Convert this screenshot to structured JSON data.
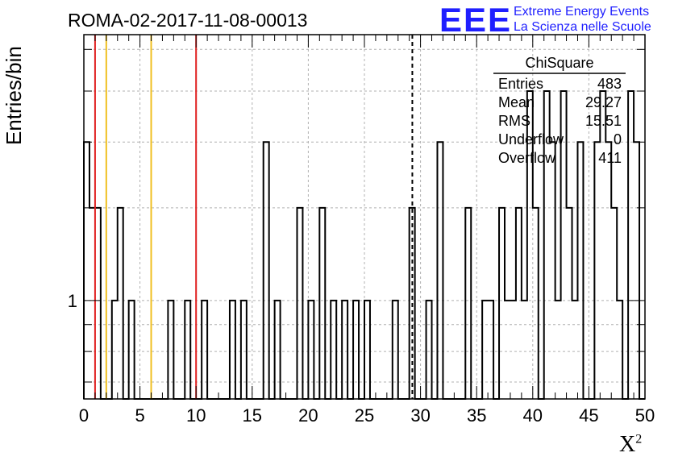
{
  "title": "ROMA-02-2017-11-08-00013",
  "logo": {
    "mark": "EEE",
    "line1": "Extreme Energy Events",
    "line2": "La Scienza nelle Scuole"
  },
  "chart_data": {
    "type": "bar",
    "title": "ROMA-02-2017-11-08-00013",
    "xlabel": "X",
    "xlabel_sup": "2",
    "ylabel": "Entries/bin",
    "xlim": [
      0,
      50
    ],
    "ylim": [
      0.65,
      3.2
    ],
    "y_scale": "log",
    "bin_width": 0.5,
    "grid": true,
    "x_tick_labels": [
      "0",
      "5",
      "10",
      "15",
      "20",
      "25",
      "30",
      "35",
      "40",
      "45",
      "50"
    ],
    "y_tick_labels": [
      "1"
    ],
    "bins": [
      {
        "x": 0.0,
        "y": 2
      },
      {
        "x": 0.5,
        "y": 1.5
      },
      {
        "x": 1.0,
        "y": 1.5
      },
      {
        "x": 2.5,
        "y": 1
      },
      {
        "x": 3.0,
        "y": 1.5
      },
      {
        "x": 4.0,
        "y": 1
      },
      {
        "x": 7.5,
        "y": 1
      },
      {
        "x": 9.0,
        "y": 1
      },
      {
        "x": 10.5,
        "y": 1
      },
      {
        "x": 13.0,
        "y": 1
      },
      {
        "x": 14.0,
        "y": 1
      },
      {
        "x": 16.0,
        "y": 2
      },
      {
        "x": 17.0,
        "y": 1
      },
      {
        "x": 19.0,
        "y": 1.5
      },
      {
        "x": 20.0,
        "y": 1
      },
      {
        "x": 21.0,
        "y": 1.5
      },
      {
        "x": 22.0,
        "y": 1
      },
      {
        "x": 23.0,
        "y": 1
      },
      {
        "x": 24.0,
        "y": 1
      },
      {
        "x": 25.0,
        "y": 1
      },
      {
        "x": 27.5,
        "y": 1
      },
      {
        "x": 29.0,
        "y": 1.5
      },
      {
        "x": 30.5,
        "y": 1
      },
      {
        "x": 31.5,
        "y": 2
      },
      {
        "x": 34.0,
        "y": 1.5
      },
      {
        "x": 35.5,
        "y": 1
      },
      {
        "x": 36.0,
        "y": 1
      },
      {
        "x": 37.0,
        "y": 1.5
      },
      {
        "x": 37.5,
        "y": 1
      },
      {
        "x": 38.0,
        "y": 1
      },
      {
        "x": 38.5,
        "y": 1.5
      },
      {
        "x": 39.0,
        "y": 1
      },
      {
        "x": 39.5,
        "y": 2.5
      },
      {
        "x": 40.0,
        "y": 1.5
      },
      {
        "x": 41.0,
        "y": 2.5
      },
      {
        "x": 41.5,
        "y": 2
      },
      {
        "x": 42.0,
        "y": 1
      },
      {
        "x": 42.5,
        "y": 2.5
      },
      {
        "x": 43.0,
        "y": 1.5
      },
      {
        "x": 43.5,
        "y": 1
      },
      {
        "x": 44.0,
        "y": 2
      },
      {
        "x": 45.5,
        "y": 2
      },
      {
        "x": 46.0,
        "y": 2.5
      },
      {
        "x": 46.5,
        "y": 2
      },
      {
        "x": 47.0,
        "y": 1.5
      },
      {
        "x": 47.5,
        "y": 1
      },
      {
        "x": 48.5,
        "y": 2.5
      },
      {
        "x": 49.0,
        "y": 2
      }
    ],
    "vertical_lines": [
      {
        "x": 1.0,
        "color": "#e02020",
        "style": "solid"
      },
      {
        "x": 2.0,
        "color": "#f0c020",
        "style": "solid"
      },
      {
        "x": 6.0,
        "color": "#f0c020",
        "style": "solid"
      },
      {
        "x": 10.0,
        "color": "#e02020",
        "style": "solid"
      },
      {
        "x": 29.27,
        "color": "#000000",
        "style": "dashed"
      }
    ],
    "stats_box": {
      "name": "ChiSquare",
      "rows": [
        {
          "label": "Entries",
          "value": "483"
        },
        {
          "label": "Mean",
          "value": "29.27"
        },
        {
          "label": "RMS",
          "value": "15.51"
        },
        {
          "label": "Underflow",
          "value": "0"
        },
        {
          "label": "Overflow",
          "value": "411"
        }
      ]
    }
  }
}
